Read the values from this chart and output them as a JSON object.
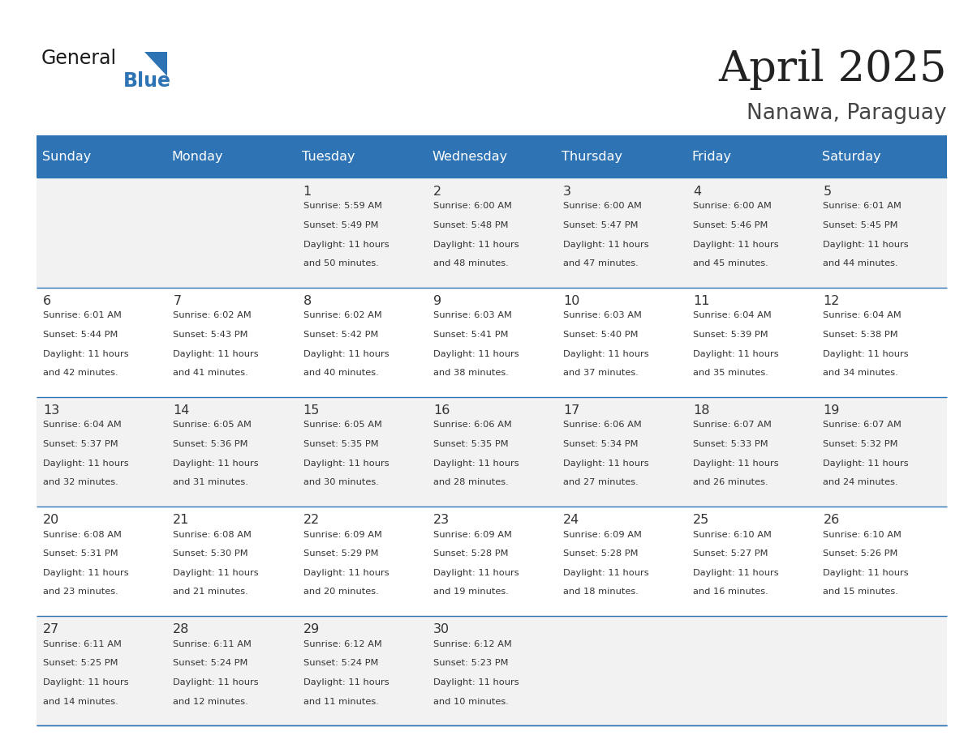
{
  "title": "April 2025",
  "subtitle": "Nanawa, Paraguay",
  "header_bg": "#2E74B5",
  "header_text_color": "#FFFFFF",
  "days_of_week": [
    "Sunday",
    "Monday",
    "Tuesday",
    "Wednesday",
    "Thursday",
    "Friday",
    "Saturday"
  ],
  "cell_bg_odd": "#F2F2F2",
  "cell_bg_even": "#FFFFFF",
  "divider_color": "#2E74B5",
  "text_color": "#333333",
  "calendar": [
    [
      {
        "day": null,
        "sunrise": null,
        "sunset": null,
        "daylight": null
      },
      {
        "day": null,
        "sunrise": null,
        "sunset": null,
        "daylight": null
      },
      {
        "day": 1,
        "sunrise": "5:59 AM",
        "sunset": "5:49 PM",
        "daylight": "11 hours and 50 minutes."
      },
      {
        "day": 2,
        "sunrise": "6:00 AM",
        "sunset": "5:48 PM",
        "daylight": "11 hours and 48 minutes."
      },
      {
        "day": 3,
        "sunrise": "6:00 AM",
        "sunset": "5:47 PM",
        "daylight": "11 hours and 47 minutes."
      },
      {
        "day": 4,
        "sunrise": "6:00 AM",
        "sunset": "5:46 PM",
        "daylight": "11 hours and 45 minutes."
      },
      {
        "day": 5,
        "sunrise": "6:01 AM",
        "sunset": "5:45 PM",
        "daylight": "11 hours and 44 minutes."
      }
    ],
    [
      {
        "day": 6,
        "sunrise": "6:01 AM",
        "sunset": "5:44 PM",
        "daylight": "11 hours and 42 minutes."
      },
      {
        "day": 7,
        "sunrise": "6:02 AM",
        "sunset": "5:43 PM",
        "daylight": "11 hours and 41 minutes."
      },
      {
        "day": 8,
        "sunrise": "6:02 AM",
        "sunset": "5:42 PM",
        "daylight": "11 hours and 40 minutes."
      },
      {
        "day": 9,
        "sunrise": "6:03 AM",
        "sunset": "5:41 PM",
        "daylight": "11 hours and 38 minutes."
      },
      {
        "day": 10,
        "sunrise": "6:03 AM",
        "sunset": "5:40 PM",
        "daylight": "11 hours and 37 minutes."
      },
      {
        "day": 11,
        "sunrise": "6:04 AM",
        "sunset": "5:39 PM",
        "daylight": "11 hours and 35 minutes."
      },
      {
        "day": 12,
        "sunrise": "6:04 AM",
        "sunset": "5:38 PM",
        "daylight": "11 hours and 34 minutes."
      }
    ],
    [
      {
        "day": 13,
        "sunrise": "6:04 AM",
        "sunset": "5:37 PM",
        "daylight": "11 hours and 32 minutes."
      },
      {
        "day": 14,
        "sunrise": "6:05 AM",
        "sunset": "5:36 PM",
        "daylight": "11 hours and 31 minutes."
      },
      {
        "day": 15,
        "sunrise": "6:05 AM",
        "sunset": "5:35 PM",
        "daylight": "11 hours and 30 minutes."
      },
      {
        "day": 16,
        "sunrise": "6:06 AM",
        "sunset": "5:35 PM",
        "daylight": "11 hours and 28 minutes."
      },
      {
        "day": 17,
        "sunrise": "6:06 AM",
        "sunset": "5:34 PM",
        "daylight": "11 hours and 27 minutes."
      },
      {
        "day": 18,
        "sunrise": "6:07 AM",
        "sunset": "5:33 PM",
        "daylight": "11 hours and 26 minutes."
      },
      {
        "day": 19,
        "sunrise": "6:07 AM",
        "sunset": "5:32 PM",
        "daylight": "11 hours and 24 minutes."
      }
    ],
    [
      {
        "day": 20,
        "sunrise": "6:08 AM",
        "sunset": "5:31 PM",
        "daylight": "11 hours and 23 minutes."
      },
      {
        "day": 21,
        "sunrise": "6:08 AM",
        "sunset": "5:30 PM",
        "daylight": "11 hours and 21 minutes."
      },
      {
        "day": 22,
        "sunrise": "6:09 AM",
        "sunset": "5:29 PM",
        "daylight": "11 hours and 20 minutes."
      },
      {
        "day": 23,
        "sunrise": "6:09 AM",
        "sunset": "5:28 PM",
        "daylight": "11 hours and 19 minutes."
      },
      {
        "day": 24,
        "sunrise": "6:09 AM",
        "sunset": "5:28 PM",
        "daylight": "11 hours and 18 minutes."
      },
      {
        "day": 25,
        "sunrise": "6:10 AM",
        "sunset": "5:27 PM",
        "daylight": "11 hours and 16 minutes."
      },
      {
        "day": 26,
        "sunrise": "6:10 AM",
        "sunset": "5:26 PM",
        "daylight": "11 hours and 15 minutes."
      }
    ],
    [
      {
        "day": 27,
        "sunrise": "6:11 AM",
        "sunset": "5:25 PM",
        "daylight": "11 hours and 14 minutes."
      },
      {
        "day": 28,
        "sunrise": "6:11 AM",
        "sunset": "5:24 PM",
        "daylight": "11 hours and 12 minutes."
      },
      {
        "day": 29,
        "sunrise": "6:12 AM",
        "sunset": "5:24 PM",
        "daylight": "11 hours and 11 minutes."
      },
      {
        "day": 30,
        "sunrise": "6:12 AM",
        "sunset": "5:23 PM",
        "daylight": "11 hours and 10 minutes."
      },
      {
        "day": null,
        "sunrise": null,
        "sunset": null,
        "daylight": null
      },
      {
        "day": null,
        "sunrise": null,
        "sunset": null,
        "daylight": null
      },
      {
        "day": null,
        "sunrise": null,
        "sunset": null,
        "daylight": null
      }
    ]
  ]
}
